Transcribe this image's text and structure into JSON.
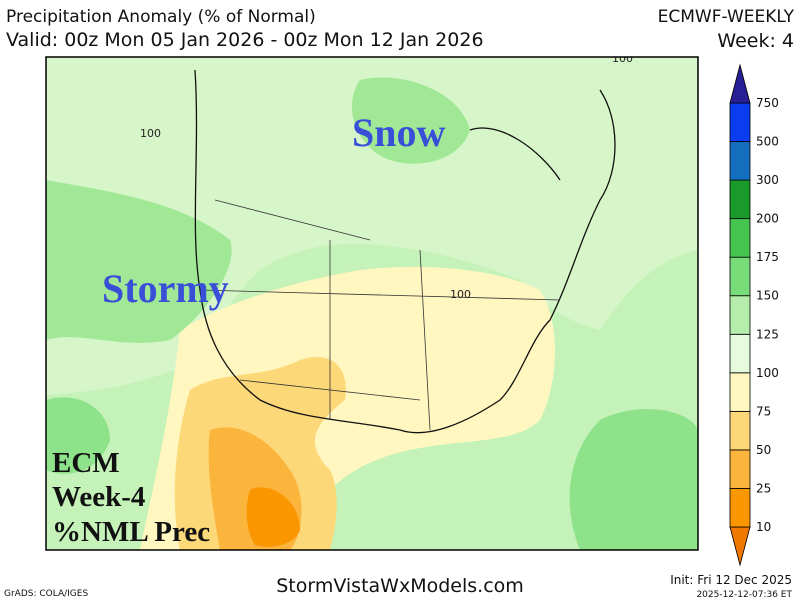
{
  "header": {
    "title": "Precipitation Anomaly (% of Normal)",
    "valid": "Valid: 00z Mon 05 Jan 2026 - 00z Mon 12 Jan 2026",
    "model": "ECMWF-WEEKLY",
    "week": "Week: 4"
  },
  "map": {
    "annotations": [
      "Snow",
      "Stormy"
    ],
    "legend_text": [
      "ECM",
      "Week-4",
      "%NML Prec"
    ],
    "contour_labels": [
      "100",
      "100",
      "100"
    ]
  },
  "colorbar": {
    "levels": [
      10,
      25,
      50,
      75,
      100,
      125,
      150,
      175,
      200,
      300,
      500,
      750
    ],
    "colors": [
      "#f07800",
      "#fa9600",
      "#fbb43c",
      "#fdd878",
      "#fff6c0",
      "#e6fadc",
      "#b4eeaa",
      "#78dc78",
      "#46c450",
      "#1a9a2a",
      "#1470be",
      "#0a3cf0",
      "#281e96"
    ]
  },
  "footer": {
    "credit": "GrADS: COLA/IGES",
    "site": "StormVistaWxModels.com",
    "init": "Init: Fri 12 Dec 2025",
    "stamp": "2025-12-12-07:36 ET"
  }
}
